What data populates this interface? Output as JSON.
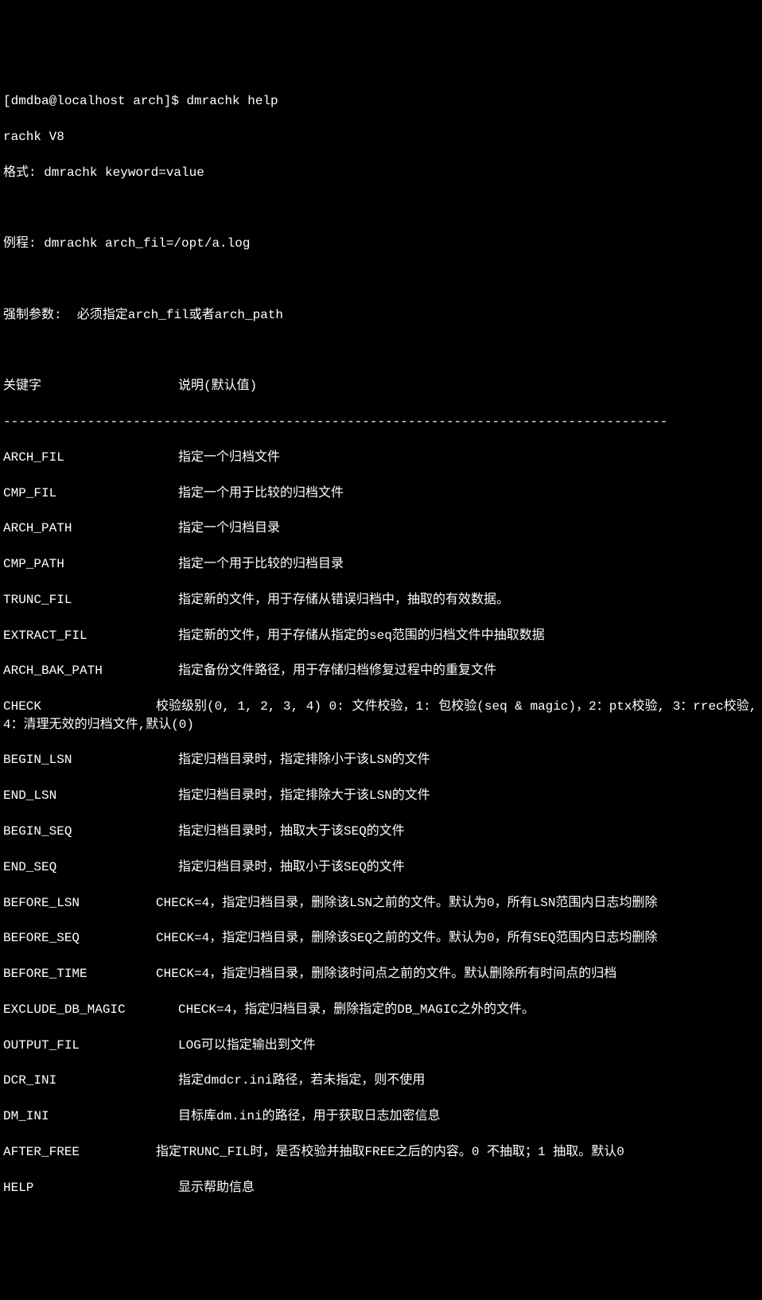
{
  "prompt": "[dmdba@localhost arch]$ dmrachk help",
  "version": "rachk V8",
  "format": "格式: dmrachk keyword=value",
  "example": "例程: dmrachk arch_fil=/opt/a.log",
  "required": "强制参数:  必须指定arch_fil或者arch_path",
  "header_key": "关键字",
  "header_desc": "说明(默认值)",
  "separator": "---------------------------------------------------------------------------------------",
  "params": {
    "arch_fil": {
      "key": "ARCH_FIL",
      "desc": "指定一个归档文件"
    },
    "cmp_fil": {
      "key": "CMP_FIL",
      "desc": "指定一个用于比较的归档文件"
    },
    "arch_path": {
      "key": "ARCH_PATH",
      "desc": "指定一个归档目录"
    },
    "cmp_path": {
      "key": "CMP_PATH",
      "desc": "指定一个用于比较的归档目录"
    },
    "trunc_fil": {
      "key": "TRUNC_FIL",
      "desc": "指定新的文件，用于存储从错误归档中，抽取的有效数据。"
    },
    "extract_fil": {
      "key": "EXTRACT_FIL",
      "desc": "指定新的文件，用于存储从指定的seq范围的归档文件中抽取数据"
    },
    "arch_bak_path": {
      "key": "ARCH_BAK_PATH",
      "desc": "指定备份文件路径，用于存储归档修复过程中的重复文件"
    },
    "check": "CHECK               校验级别(0, 1, 2, 3, 4) 0: 文件校验，1: 包校验(seq & magic)，2：ptx校验, 3：rrec校验, 4：清理无效的归档文件,默认(0)",
    "begin_lsn": {
      "key": "BEGIN_LSN",
      "desc": "指定归档目录时，指定排除小于该LSN的文件"
    },
    "end_lsn": {
      "key": "END_LSN",
      "desc": "指定归档目录时，指定排除大于该LSN的文件"
    },
    "begin_seq": {
      "key": "BEGIN_SEQ",
      "desc": "指定归档目录时，抽取大于该SEQ的文件"
    },
    "end_seq": {
      "key": "END_SEQ",
      "desc": "指定归档目录时，抽取小于该SEQ的文件"
    },
    "before_lsn": "BEFORE_LSN          CHECK=4，指定归档目录，删除该LSN之前的文件。默认为0，所有LSN范围内日志均删除",
    "before_seq": "BEFORE_SEQ          CHECK=4，指定归档目录，删除该SEQ之前的文件。默认为0，所有SEQ范围内日志均删除",
    "before_time": "BEFORE_TIME         CHECK=4，指定归档目录，删除该时间点之前的文件。默认删除所有时间点的归档",
    "exclude_db_magic": {
      "key": "EXCLUDE_DB_MAGIC",
      "desc": "CHECK=4，指定归档目录，删除指定的DB_MAGIC之外的文件。"
    },
    "output_fil": {
      "key": "OUTPUT_FIL",
      "desc": "LOG可以指定输出到文件"
    },
    "dcr_ini": {
      "key": "DCR_INI",
      "desc": "指定dmdcr.ini路径，若未指定，则不使用"
    },
    "dm_ini": {
      "key": "DM_INI",
      "desc": "目标库dm.ini的路径，用于获取日志加密信息"
    },
    "after_free": "AFTER_FREE          指定TRUNC_FIL时，是否校验并抽取FREE之后的内容。0 不抽取；1 抽取。默认0",
    "help": {
      "key": "HELP",
      "desc": "显示帮助信息"
    }
  }
}
